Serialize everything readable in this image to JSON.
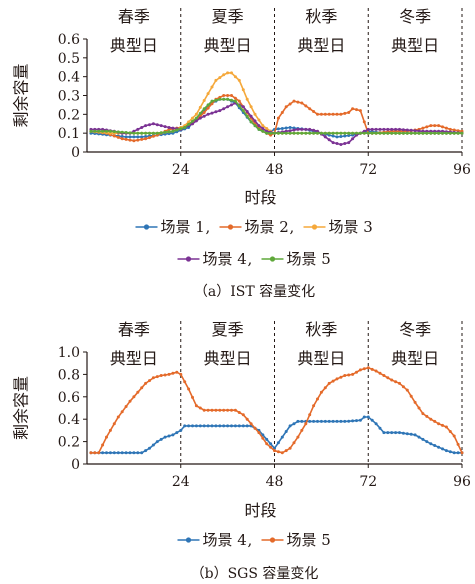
{
  "chart_data": [
    {
      "type": "line",
      "caption": "（a）IST 容量变化",
      "xlabel": "时段",
      "ylabel": "剩余容量",
      "xlim": [
        0,
        96
      ],
      "ylim": [
        0,
        0.6
      ],
      "xticks": [
        "24",
        "48",
        "72",
        "96"
      ],
      "yticks": [
        "0",
        "0.1",
        "0.2",
        "0.3",
        "0.4",
        "0.5",
        "0.6"
      ],
      "dividers": [
        24,
        48,
        72
      ],
      "seasons": [
        {
          "name": "春季",
          "sub": "典型日"
        },
        {
          "name": "夏季",
          "sub": "典型日"
        },
        {
          "name": "秋季",
          "sub": "典型日"
        },
        {
          "name": "冬季",
          "sub": "典型日"
        }
      ],
      "series": [
        {
          "name": "场景 1",
          "color": "#2e75b6",
          "points": [
            [
              1,
              0.1
            ],
            [
              6,
              0.09
            ],
            [
              10,
              0.08
            ],
            [
              14,
              0.08
            ],
            [
              18,
              0.09
            ],
            [
              22,
              0.1
            ],
            [
              26,
              0.13
            ],
            [
              29,
              0.2
            ],
            [
              32,
              0.26
            ],
            [
              34,
              0.28
            ],
            [
              36,
              0.28
            ],
            [
              38,
              0.26
            ],
            [
              40,
              0.21
            ],
            [
              42,
              0.16
            ],
            [
              44,
              0.12
            ],
            [
              46,
              0.1
            ],
            [
              48,
              0.12
            ],
            [
              52,
              0.13
            ],
            [
              56,
              0.12
            ],
            [
              60,
              0.1
            ],
            [
              64,
              0.08
            ],
            [
              68,
              0.09
            ],
            [
              72,
              0.11
            ],
            [
              76,
              0.1
            ],
            [
              82,
              0.1
            ],
            [
              88,
              0.1
            ],
            [
              92,
              0.1
            ],
            [
              96,
              0.1
            ]
          ]
        },
        {
          "name": "场景 2",
          "color": "#e46a2a",
          "points": [
            [
              1,
              0.11
            ],
            [
              5,
              0.1
            ],
            [
              9,
              0.07
            ],
            [
              12,
              0.06
            ],
            [
              15,
              0.07
            ],
            [
              18,
              0.09
            ],
            [
              21,
              0.12
            ],
            [
              24,
              0.13
            ],
            [
              27,
              0.15
            ],
            [
              30,
              0.21
            ],
            [
              33,
              0.28
            ],
            [
              35,
              0.3
            ],
            [
              37,
              0.3
            ],
            [
              39,
              0.27
            ],
            [
              41,
              0.21
            ],
            [
              43,
              0.15
            ],
            [
              45,
              0.11
            ],
            [
              47,
              0.09
            ],
            [
              48,
              0.1
            ],
            [
              49,
              0.18
            ],
            [
              51,
              0.24
            ],
            [
              53,
              0.27
            ],
            [
              55,
              0.26
            ],
            [
              57,
              0.23
            ],
            [
              59,
              0.2
            ],
            [
              61,
              0.2
            ],
            [
              63,
              0.2
            ],
            [
              65,
              0.2
            ],
            [
              67,
              0.21
            ],
            [
              68,
              0.23
            ],
            [
              70,
              0.22
            ],
            [
              72,
              0.1
            ],
            [
              74,
              0.1
            ],
            [
              78,
              0.11
            ],
            [
              82,
              0.11
            ],
            [
              85,
              0.12
            ],
            [
              88,
              0.14
            ],
            [
              90,
              0.14
            ],
            [
              93,
              0.12
            ],
            [
              96,
              0.11
            ]
          ]
        },
        {
          "name": "场景 3",
          "color": "#f5a83a",
          "points": [
            [
              1,
              0.11
            ],
            [
              6,
              0.1
            ],
            [
              10,
              0.1
            ],
            [
              14,
              0.1
            ],
            [
              18,
              0.1
            ],
            [
              22,
              0.11
            ],
            [
              25,
              0.14
            ],
            [
              28,
              0.2
            ],
            [
              31,
              0.31
            ],
            [
              33,
              0.38
            ],
            [
              35,
              0.41
            ],
            [
              36,
              0.42
            ],
            [
              37,
              0.42
            ],
            [
              39,
              0.38
            ],
            [
              41,
              0.28
            ],
            [
              43,
              0.2
            ],
            [
              45,
              0.14
            ],
            [
              47,
              0.11
            ],
            [
              48,
              0.1
            ],
            [
              52,
              0.1
            ],
            [
              60,
              0.1
            ],
            [
              68,
              0.1
            ],
            [
              72,
              0.1
            ],
            [
              80,
              0.1
            ],
            [
              88,
              0.1
            ],
            [
              96,
              0.1
            ]
          ]
        },
        {
          "name": "场景 4",
          "color": "#7b3294",
          "points": [
            [
              1,
              0.12
            ],
            [
              4,
              0.12
            ],
            [
              7,
              0.11
            ],
            [
              9,
              0.1
            ],
            [
              11,
              0.1
            ],
            [
              13,
              0.12
            ],
            [
              15,
              0.14
            ],
            [
              17,
              0.15
            ],
            [
              19,
              0.14
            ],
            [
              21,
              0.13
            ],
            [
              24,
              0.12
            ],
            [
              27,
              0.15
            ],
            [
              29,
              0.18
            ],
            [
              31,
              0.2
            ],
            [
              34,
              0.22
            ],
            [
              36,
              0.24
            ],
            [
              38,
              0.26
            ],
            [
              40,
              0.24
            ],
            [
              42,
              0.19
            ],
            [
              44,
              0.14
            ],
            [
              46,
              0.11
            ],
            [
              48,
              0.1
            ],
            [
              51,
              0.11
            ],
            [
              54,
              0.12
            ],
            [
              57,
              0.12
            ],
            [
              59,
              0.11
            ],
            [
              61,
              0.08
            ],
            [
              63,
              0.05
            ],
            [
              65,
              0.04
            ],
            [
              67,
              0.05
            ],
            [
              69,
              0.09
            ],
            [
              72,
              0.12
            ],
            [
              75,
              0.12
            ],
            [
              80,
              0.12
            ],
            [
              86,
              0.11
            ],
            [
              91,
              0.11
            ],
            [
              96,
              0.1
            ]
          ]
        },
        {
          "name": "场景 5",
          "color": "#5fa83a",
          "points": [
            [
              1,
              0.11
            ],
            [
              6,
              0.11
            ],
            [
              12,
              0.1
            ],
            [
              18,
              0.1
            ],
            [
              22,
              0.11
            ],
            [
              25,
              0.13
            ],
            [
              28,
              0.18
            ],
            [
              30,
              0.23
            ],
            [
              32,
              0.27
            ],
            [
              34,
              0.28
            ],
            [
              36,
              0.28
            ],
            [
              38,
              0.27
            ],
            [
              40,
              0.22
            ],
            [
              42,
              0.16
            ],
            [
              44,
              0.12
            ],
            [
              46,
              0.1
            ],
            [
              48,
              0.1
            ],
            [
              56,
              0.1
            ],
            [
              64,
              0.1
            ],
            [
              72,
              0.1
            ],
            [
              80,
              0.1
            ],
            [
              88,
              0.1
            ],
            [
              96,
              0.1
            ]
          ]
        }
      ],
      "legend_rows": [
        [
          "场景 1",
          "场景 2",
          "场景 3"
        ],
        [
          "场景 4",
          "场景 5"
        ]
      ],
      "legend_separators": [
        ",",
        ","
      ]
    },
    {
      "type": "line",
      "caption": "（b）SGS 容量变化",
      "xlabel": "时段",
      "ylabel": "剩余容量",
      "xlim": [
        0,
        96
      ],
      "ylim": [
        0,
        1.0
      ],
      "xticks": [
        "24",
        "48",
        "72",
        "96"
      ],
      "yticks": [
        "0",
        "0.2",
        "0.4",
        "0.6",
        "0.8",
        "1.0"
      ],
      "dividers": [
        24,
        48,
        72
      ],
      "seasons": [
        {
          "name": "春季",
          "sub": "典型日"
        },
        {
          "name": "夏季",
          "sub": "典型日"
        },
        {
          "name": "秋季",
          "sub": "典型日"
        },
        {
          "name": "冬季",
          "sub": "典型日"
        }
      ],
      "series": [
        {
          "name": "场景 4",
          "color": "#2e75b6",
          "points": [
            [
              1,
              0.1
            ],
            [
              4,
              0.1
            ],
            [
              8,
              0.1
            ],
            [
              12,
              0.1
            ],
            [
              14,
              0.1
            ],
            [
              16,
              0.14
            ],
            [
              18,
              0.2
            ],
            [
              20,
              0.24
            ],
            [
              22,
              0.26
            ],
            [
              24,
              0.3
            ],
            [
              25,
              0.34
            ],
            [
              28,
              0.34
            ],
            [
              32,
              0.34
            ],
            [
              36,
              0.34
            ],
            [
              40,
              0.34
            ],
            [
              42,
              0.34
            ],
            [
              44,
              0.3
            ],
            [
              46,
              0.22
            ],
            [
              48,
              0.14
            ],
            [
              50,
              0.24
            ],
            [
              52,
              0.34
            ],
            [
              54,
              0.38
            ],
            [
              58,
              0.38
            ],
            [
              62,
              0.38
            ],
            [
              66,
              0.38
            ],
            [
              70,
              0.39
            ],
            [
              71,
              0.42
            ],
            [
              72,
              0.42
            ],
            [
              74,
              0.36
            ],
            [
              76,
              0.28
            ],
            [
              80,
              0.28
            ],
            [
              84,
              0.26
            ],
            [
              88,
              0.18
            ],
            [
              92,
              0.12
            ],
            [
              94,
              0.1
            ],
            [
              96,
              0.1
            ]
          ]
        },
        {
          "name": "场景 5",
          "color": "#e46a2a",
          "points": [
            [
              1,
              0.1
            ],
            [
              3,
              0.1
            ],
            [
              5,
              0.24
            ],
            [
              8,
              0.42
            ],
            [
              11,
              0.56
            ],
            [
              13,
              0.64
            ],
            [
              15,
              0.72
            ],
            [
              17,
              0.77
            ],
            [
              19,
              0.79
            ],
            [
              21,
              0.8
            ],
            [
              23,
              0.82
            ],
            [
              24,
              0.8
            ],
            [
              26,
              0.67
            ],
            [
              28,
              0.52
            ],
            [
              30,
              0.48
            ],
            [
              34,
              0.48
            ],
            [
              38,
              0.48
            ],
            [
              40,
              0.44
            ],
            [
              42,
              0.36
            ],
            [
              44,
              0.28
            ],
            [
              46,
              0.18
            ],
            [
              48,
              0.12
            ],
            [
              50,
              0.1
            ],
            [
              52,
              0.14
            ],
            [
              54,
              0.24
            ],
            [
              56,
              0.36
            ],
            [
              58,
              0.52
            ],
            [
              60,
              0.64
            ],
            [
              62,
              0.72
            ],
            [
              64,
              0.76
            ],
            [
              66,
              0.79
            ],
            [
              68,
              0.8
            ],
            [
              70,
              0.84
            ],
            [
              72,
              0.86
            ],
            [
              74,
              0.83
            ],
            [
              76,
              0.79
            ],
            [
              78,
              0.75
            ],
            [
              80,
              0.72
            ],
            [
              82,
              0.66
            ],
            [
              84,
              0.55
            ],
            [
              86,
              0.45
            ],
            [
              88,
              0.4
            ],
            [
              90,
              0.36
            ],
            [
              92,
              0.33
            ],
            [
              94,
              0.25
            ],
            [
              96,
              0.1
            ]
          ]
        }
      ],
      "legend_rows": [
        [
          "场景 4",
          "场景 5"
        ]
      ],
      "legend_separators": [
        ","
      ]
    }
  ]
}
